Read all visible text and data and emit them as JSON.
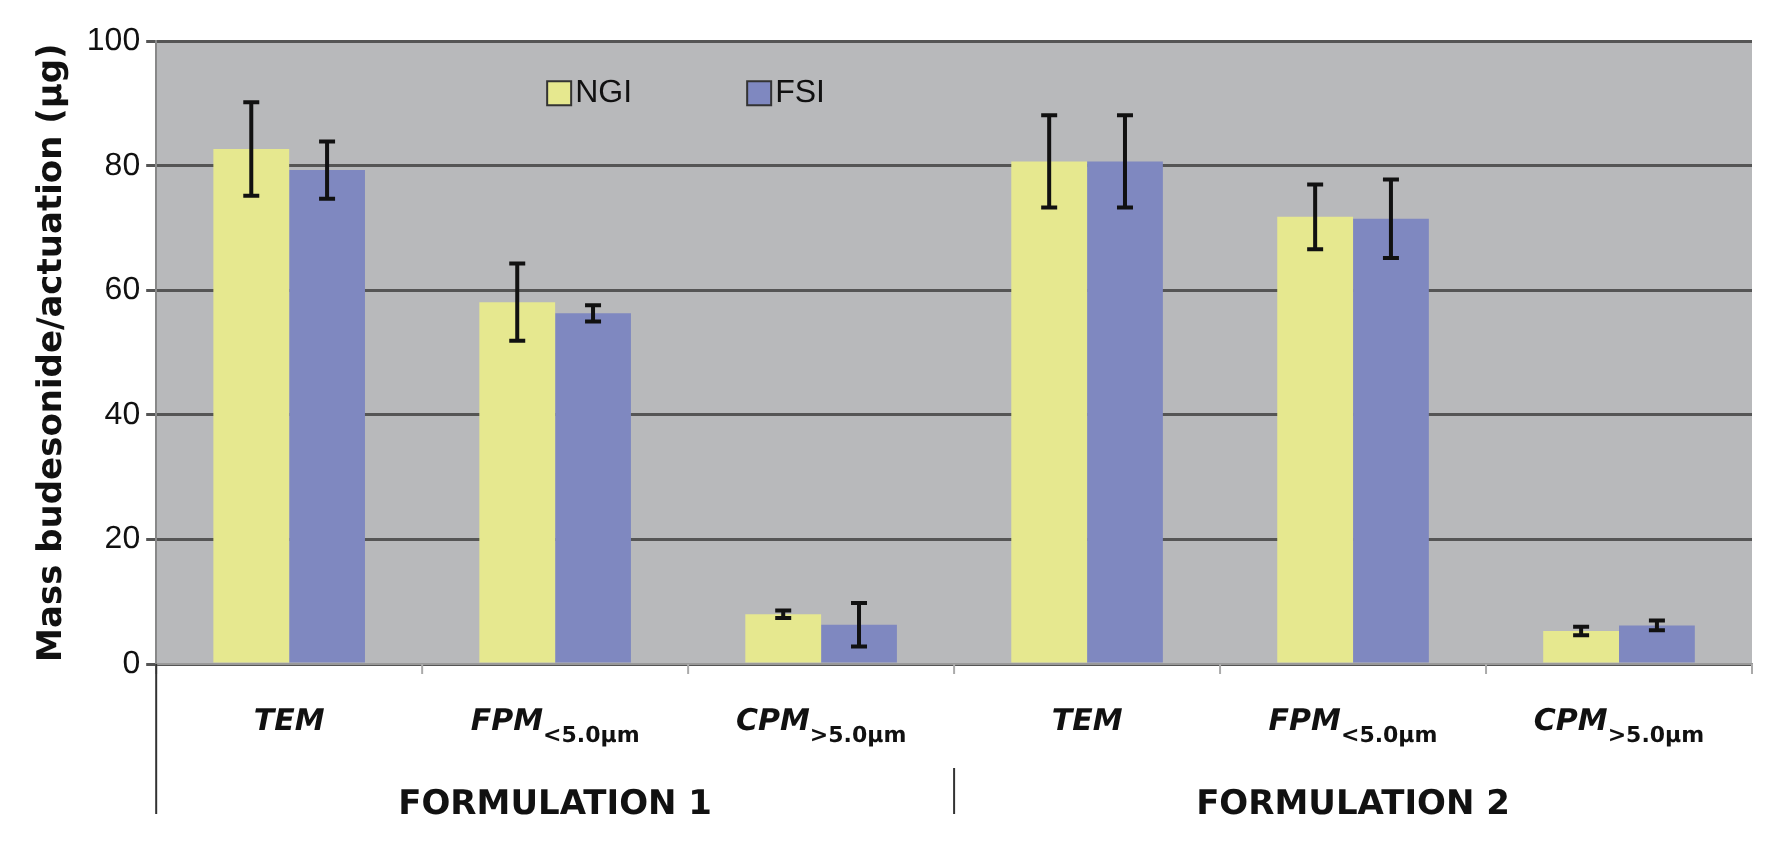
{
  "chart_data": {
    "type": "bar",
    "ylabel": "Mass budesonide/actuation (µg)",
    "categories": [
      "TEM",
      "FPM$_{<5.0µm}$",
      "CPM$_{>5.0µm}$",
      "TEM",
      "FPM$_{<5.0µm}$",
      "CPM$_{>5.0µm}$"
    ],
    "series": [
      {
        "name": "NGI",
        "color": "#e6e88f",
        "values": [
          82.7,
          58.1,
          8.0,
          80.7,
          71.8,
          5.3
        ],
        "errors": [
          7.5,
          6.2,
          0.6,
          7.4,
          5.2,
          0.7
        ]
      },
      {
        "name": "FSI",
        "color": "#7f88c0",
        "values": [
          79.3,
          56.3,
          6.3,
          80.7,
          71.5,
          6.2
        ],
        "errors": [
          4.6,
          1.3,
          3.5,
          7.4,
          6.3,
          0.8
        ]
      }
    ],
    "annotations": [
      "FORMULATION 1",
      "FORMULATION 2"
    ],
    "ylim": [
      0,
      100
    ],
    "yticks": [
      0,
      20,
      40,
      60,
      80,
      100
    ],
    "grid": "y",
    "legend": "top"
  }
}
